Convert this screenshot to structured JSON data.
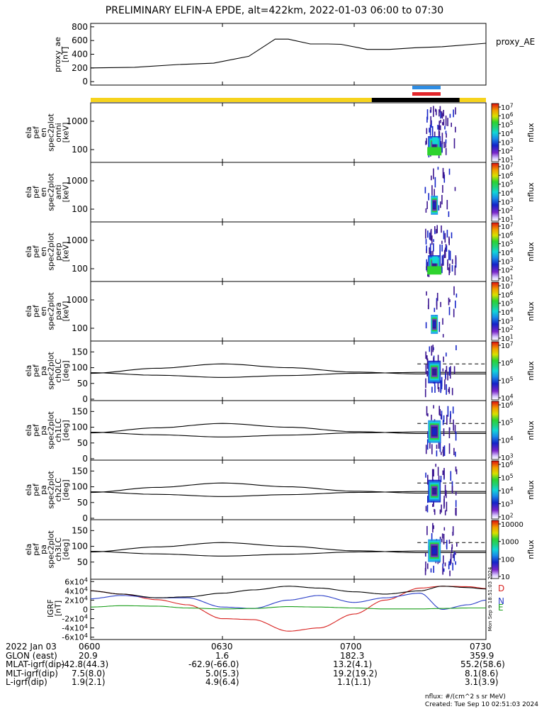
{
  "title": "PRELIMINARY ELFIN-A EPDE, alt=422km, 2022-01-03 06:00 to 07:30",
  "colors": {
    "bar_yellow": "#f6d31d",
    "bar_black": "#000000",
    "marker_blue": "#2f8de3",
    "marker_red": "#e3262b",
    "trace_black": "#000000",
    "trace_red": "#d8211f",
    "trace_blue": "#2b3fc8",
    "trace_green": "#1a9e1a"
  },
  "colorbar_label": "nflux",
  "panels": [
    {
      "ylabel": [
        "ela",
        "pef",
        "en",
        "spec2plot",
        "omni",
        "[keV]"
      ],
      "yticks": [
        "1000",
        "100"
      ],
      "cbar_ticks": [
        "10^7",
        "10^6",
        "10^5",
        "10^4",
        "10^3",
        "10^2",
        "10^1"
      ],
      "cbar_range": [
        "10",
        "10^7"
      ]
    },
    {
      "ylabel": [
        "ela",
        "pef",
        "en",
        "spec2plot",
        "anti",
        "[keV]"
      ],
      "yticks": [
        "1000",
        "100"
      ],
      "cbar_ticks": [
        "10^7",
        "10^6",
        "10^5",
        "10^4",
        "10^3",
        "10^2",
        "10^1"
      ],
      "cbar_range": [
        "10",
        "10^7"
      ]
    },
    {
      "ylabel": [
        "ela",
        "pef",
        "en",
        "spec2plot",
        "perp",
        "[keV]"
      ],
      "yticks": [
        "1000",
        "100"
      ],
      "cbar_ticks": [
        "10^7",
        "10^6",
        "10^5",
        "10^4",
        "10^3",
        "10^2",
        "10^1"
      ],
      "cbar_range": [
        "10",
        "10^7"
      ]
    },
    {
      "ylabel": [
        "ela",
        "pef",
        "en",
        "spec2plot",
        "para",
        "[keV]"
      ],
      "yticks": [
        "1000",
        "100"
      ],
      "cbar_ticks": [
        "10^7",
        "10^6",
        "10^5",
        "10^4",
        "10^3",
        "10^2",
        "10^1"
      ],
      "cbar_range": [
        "10",
        "10^7"
      ]
    },
    {
      "ylabel": [
        "ela",
        "pef",
        "pa",
        "spec2plot",
        "ch0LC",
        "[deg]"
      ],
      "yticks": [
        "150",
        "100",
        "50",
        "0"
      ],
      "cbar_ticks": [
        "10^7",
        "10^6",
        "10^5",
        "10^4"
      ],
      "cbar_range": [
        "10^3.5",
        "10^7"
      ]
    },
    {
      "ylabel": [
        "ela",
        "pef",
        "pa",
        "spec2plot",
        "ch1LC",
        "[deg]"
      ],
      "yticks": [
        "150",
        "100",
        "50",
        "0"
      ],
      "cbar_ticks": [
        "10^6",
        "10^5",
        "10^4",
        "10^3"
      ],
      "cbar_range": [
        "10^2.7",
        "10^6.5"
      ]
    },
    {
      "ylabel": [
        "ela",
        "pef",
        "pa",
        "spec2plot",
        "ch2LC",
        "[deg]"
      ],
      "yticks": [
        "150",
        "100",
        "50",
        "0"
      ],
      "cbar_ticks": [
        "10^6",
        "10^5",
        "10^4",
        "10^3",
        "10^2"
      ],
      "cbar_range": [
        "10^1.8",
        "10^6.2"
      ]
    },
    {
      "ylabel": [
        "ela",
        "pef",
        "pa",
        "spec2plot",
        "ch3LC",
        "[deg]"
      ],
      "yticks": [
        "150",
        "100",
        "50"
      ],
      "cbar_ticks": [
        "10000",
        "1000",
        "100",
        "10"
      ],
      "cbar_range": [
        "10",
        "10^4.6"
      ]
    }
  ],
  "chart_data": {
    "type": "line",
    "x_ticks": [
      "0600",
      "0630",
      "0700",
      "0730"
    ],
    "proxy_ae": {
      "ylabel": [
        "proxy_ae",
        "[nT]"
      ],
      "legend": "proxy_AE",
      "yticks": [
        "800",
        "600",
        "400",
        "200",
        "0"
      ],
      "ylim": [
        -50,
        850
      ],
      "x_min": [
        0,
        10,
        20,
        28,
        36,
        42,
        45,
        50,
        54,
        57,
        63,
        68,
        74,
        80,
        90
      ],
      "values": [
        200,
        210,
        250,
        270,
        370,
        620,
        620,
        550,
        550,
        545,
        470,
        470,
        495,
        510,
        560
      ]
    },
    "igrf": {
      "ylabel": [
        "IGRF",
        "[nT]"
      ],
      "yticks": [
        "6x10^4",
        "4x10^4",
        "2x10^4",
        "0",
        "-2x10^4",
        "-4x10^4",
        "-6x10^4"
      ],
      "ylim": [
        -65000,
        65000
      ],
      "legend": [
        "D",
        "N",
        "E"
      ],
      "x_min": [
        0,
        7,
        15,
        22,
        30,
        37,
        45,
        52,
        60,
        67,
        75,
        80,
        86,
        90
      ],
      "series": [
        {
          "name": "D",
          "values": [
            40000,
            33000,
            21000,
            10000,
            -20000,
            -22000,
            -47000,
            -40000,
            -10000,
            20000,
            46000,
            50000,
            49000,
            45000
          ]
        },
        {
          "name": "N",
          "values": [
            23000,
            30000,
            25000,
            25000,
            5000,
            2000,
            20000,
            30000,
            15000,
            25000,
            35000,
            0,
            10000,
            20000
          ]
        },
        {
          "name": "E",
          "values": [
            5000,
            8000,
            7000,
            3000,
            1000,
            2000,
            6000,
            5000,
            3000,
            1000,
            1000,
            2000,
            3000,
            3000
          ]
        },
        {
          "name": "mag",
          "values": [
            40000,
            33000,
            25000,
            27000,
            35000,
            42000,
            50000,
            46000,
            38000,
            33000,
            40000,
            50000,
            47000,
            44000
          ]
        }
      ]
    },
    "pa_panels": {
      "ylim": [
        0,
        180
      ],
      "lc_trace": {
        "x_min": [
          0,
          15,
          30,
          45,
          60,
          75,
          90
        ],
        "values": [
          82,
          98,
          112,
          100,
          86,
          80,
          80
        ]
      },
      "dashed_level": 112,
      "dashed_start_min": 76
    },
    "spec_activity": {
      "x_start_min": 76,
      "x_end_min": 80
    },
    "status_bar": {
      "yellow_until_min": 64,
      "black_until_min": 84
    }
  },
  "orbit_table": {
    "rows": [
      [
        "2022 Jan 03",
        "0600",
        "0630",
        "0700",
        "0730"
      ],
      [
        "GLON (east)",
        "20.9",
        "1.6",
        "182.3",
        "359.9"
      ],
      [
        "MLAT-igrf(dip)",
        "-42.8(44.3)",
        "-62.9(-66.0)",
        "13.2(4.1)",
        "55.2(58.6)"
      ],
      [
        "MLT-igrf(dip)",
        "7.5(8.0)",
        "5.0(5.3)",
        "19.2(19.2)",
        "8.1(8.6)"
      ],
      [
        "L-igrf(dip)",
        "1.9(2.1)",
        "4.9(6.4)",
        "1.1(1.1)",
        "3.1(3.9)"
      ]
    ]
  },
  "footer": {
    "units": "nflux: #/(cm^2 s sr MeV)",
    "created": "Created: Tue Sep 10 02:51:03 2024",
    "side_stamp": "Mon Sep 9 18:51:03 2024"
  }
}
